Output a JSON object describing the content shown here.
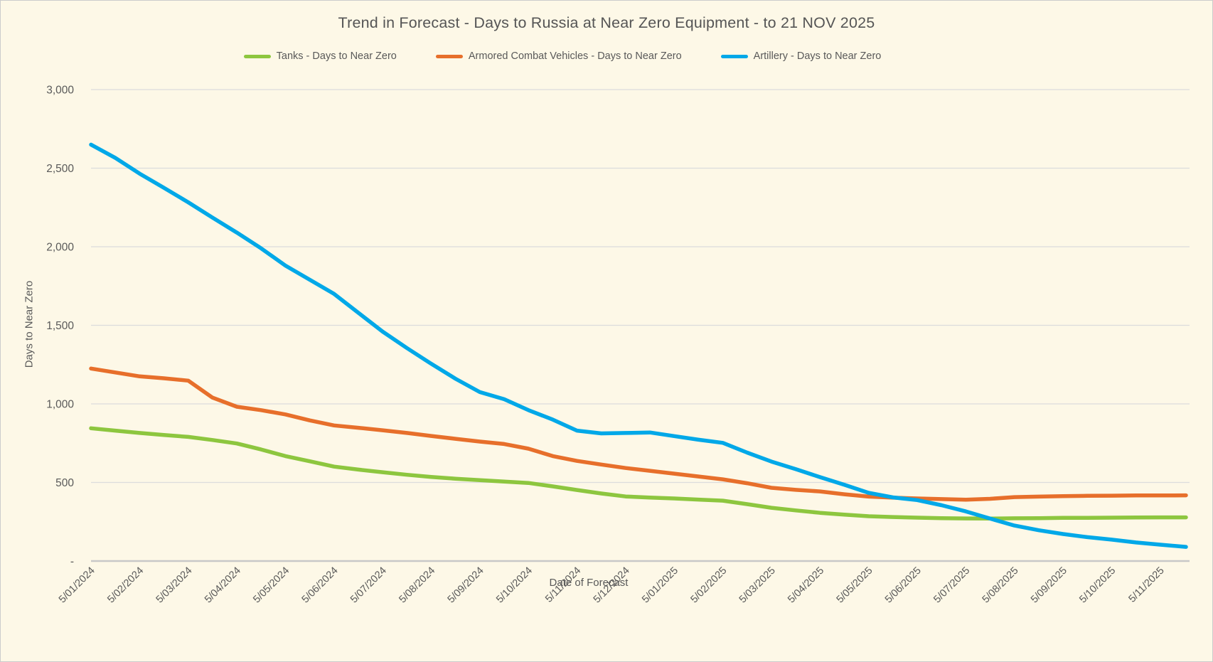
{
  "page": {
    "background": "#FDF8E7",
    "border_color": "#CCCCCC",
    "text_color": "#595959"
  },
  "title": "Trend in Forecast - Days to Russia at Near Zero Equipment - to 21 NOV 2025",
  "legend": {
    "items": [
      {
        "label": "Tanks - Days to Near Zero",
        "color": "#8DC63F"
      },
      {
        "label": "Armored Combat Vehicles - Days to Near Zero",
        "color": "#E76F2B"
      },
      {
        "label": "Artillery - Days to Near Zero",
        "color": "#00A8E8"
      }
    ]
  },
  "chart_data": {
    "type": "line",
    "title": "Trend in Forecast - Days to Russia at Near Zero Equipment - to 21 NOV 2025",
    "xlabel": "Date of Forecast",
    "ylabel": "Days to Near Zero",
    "ylim": [
      0,
      3000
    ],
    "grid": true,
    "gridline_step": 500,
    "legend_position": "top",
    "gridline_color": "#DCDCDC",
    "axis_line_color": "#C8C8C8",
    "tick_label_color": "#595959",
    "y_ticks": [
      {
        "label": "3,000",
        "value": 3000
      },
      {
        "label": "2,500",
        "value": 2500
      },
      {
        "label": "2,000",
        "value": 2000
      },
      {
        "label": "1,500",
        "value": 1500
      },
      {
        "label": "1,000",
        "value": 1000
      },
      {
        "label": "500",
        "value": 500
      },
      {
        "label": "-",
        "value": 0
      }
    ],
    "x_labels": [
      "5/01/2024",
      "5/02/2024",
      "5/03/2024",
      "5/04/2024",
      "5/05/2024",
      "5/06/2024",
      "5/07/2024",
      "5/08/2024",
      "5/09/2024",
      "5/10/2024",
      "5/11/2024",
      "5/12/2024",
      "5/01/2025",
      "5/02/2025",
      "5/03/2025",
      "5/04/2025",
      "5/05/2025",
      "5/06/2025",
      "5/07/2025",
      "5/08/2025",
      "5/09/2025",
      "5/10/2025",
      "5/11/2025"
    ],
    "x_months": [
      0,
      0.5,
      1,
      1.5,
      2,
      2.5,
      3,
      3.5,
      4,
      4.5,
      5,
      5.5,
      6,
      6.5,
      7,
      7.5,
      8,
      8.5,
      9,
      9.5,
      10,
      10.5,
      11,
      11.5,
      12,
      12.5,
      13,
      13.5,
      14,
      14.5,
      15,
      15.5,
      16,
      16.5,
      17,
      17.5,
      18,
      18.5,
      19,
      19.5,
      20,
      20.5,
      21,
      21.5,
      22,
      22.53
    ],
    "series": [
      {
        "name": "Tanks - Days to Near Zero",
        "color": "#8DC63F",
        "values": [
          845,
          830,
          815,
          802,
          790,
          770,
          748,
          710,
          668,
          635,
          601,
          582,
          565,
          549,
          535,
          524,
          515,
          506,
          497,
          475,
          452,
          430,
          411,
          404,
          398,
          391,
          384,
          362,
          339,
          322,
          307,
          295,
          285,
          280,
          276,
          273,
          271,
          270,
          272,
          273,
          275,
          275,
          276,
          277,
          278,
          278
        ]
      },
      {
        "name": "Armored Combat Vehicles - Days to Near Zero",
        "color": "#E76F2B",
        "values": [
          1225,
          1200,
          1175,
          1163,
          1148,
          1040,
          982,
          960,
          933,
          895,
          863,
          848,
          832,
          815,
          796,
          778,
          760,
          745,
          715,
          668,
          637,
          614,
          592,
          574,
          556,
          538,
          520,
          495,
          466,
          453,
          443,
          425,
          410,
          403,
          398,
          394,
          390,
          396,
          407,
          410,
          413,
          415,
          416,
          417,
          417,
          418
        ]
      },
      {
        "name": "Artillery - Days to Near Zero",
        "color": "#00A8E8",
        "values": [
          2650,
          2565,
          2465,
          2375,
          2283,
          2185,
          2090,
          1990,
          1880,
          1790,
          1700,
          1580,
          1460,
          1355,
          1255,
          1160,
          1075,
          1030,
          960,
          900,
          830,
          812,
          815,
          818,
          795,
          772,
          752,
          690,
          633,
          585,
          534,
          485,
          434,
          405,
          388,
          355,
          316,
          270,
          226,
          196,
          172,
          152,
          136,
          118,
          104,
          90
        ]
      }
    ]
  }
}
